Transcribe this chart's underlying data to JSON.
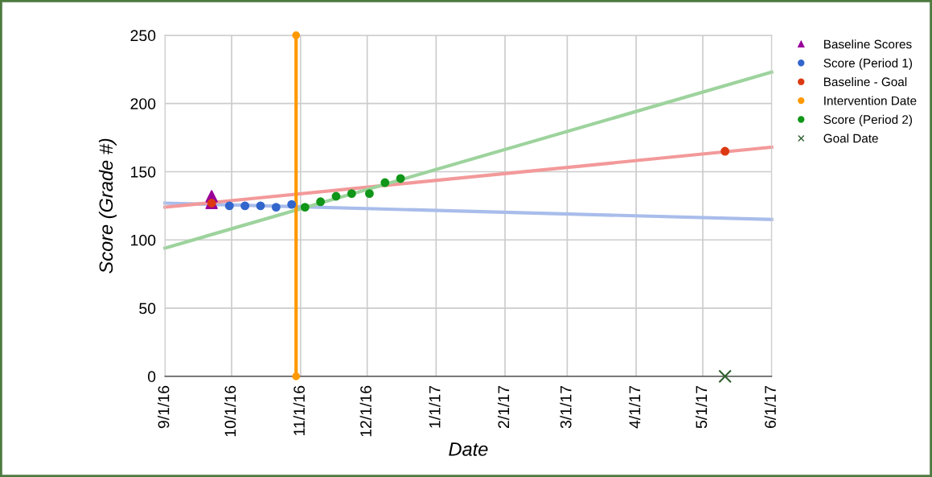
{
  "chart_data": {
    "type": "scatter",
    "xlabel": "Date",
    "ylabel": "Score (Grade #)",
    "xlim": [
      "2016-09-01",
      "2017-06-01"
    ],
    "xticks": [
      {
        "value": "2016-09-01",
        "label": "9/1/16"
      },
      {
        "value": "2016-10-01",
        "label": "10/1/16"
      },
      {
        "value": "2016-11-01",
        "label": "11/1/16"
      },
      {
        "value": "2016-12-01",
        "label": "12/1/16"
      },
      {
        "value": "2017-01-01",
        "label": "1/1/17"
      },
      {
        "value": "2017-02-01",
        "label": "2/1/17"
      },
      {
        "value": "2017-03-01",
        "label": "3/1/17"
      },
      {
        "value": "2017-04-01",
        "label": "4/1/17"
      },
      {
        "value": "2017-05-01",
        "label": "5/1/17"
      },
      {
        "value": "2017-06-01",
        "label": "6/1/17"
      }
    ],
    "ylim": [
      0,
      250
    ],
    "yticks": [
      0,
      50,
      100,
      150,
      200,
      250
    ],
    "grid": true,
    "legend": "right",
    "series": [
      {
        "type": "line",
        "color": "#a9bdeb",
        "marker": "none",
        "x": [
          "2016-09-01",
          "2017-06-01"
        ],
        "values": [
          127,
          115
        ]
      },
      {
        "type": "line",
        "color": "#f3999a",
        "marker": "none",
        "x": [
          "2016-09-01",
          "2017-06-01"
        ],
        "values": [
          124,
          168
        ]
      },
      {
        "type": "line",
        "color": "#9dd39d",
        "marker": "none",
        "x": [
          "2016-09-01",
          "2017-06-01"
        ],
        "values": [
          94,
          223
        ]
      },
      {
        "name": "Baseline Scores",
        "color": "#990099",
        "marker": "triangle",
        "x": [
          "2016-09-22",
          "2016-09-22"
        ],
        "values": [
          132,
          127
        ]
      },
      {
        "name": "Score (Period 1)",
        "color": "#3366cc",
        "marker": "circle",
        "x": [
          "2016-09-30",
          "2016-10-07",
          "2016-10-14",
          "2016-10-21",
          "2016-10-28"
        ],
        "values": [
          125,
          125,
          125,
          124,
          126
        ]
      },
      {
        "name": "Baseline - Goal",
        "color": "#dc3912",
        "marker": "circle",
        "x": [
          "2016-09-22",
          "2017-05-11"
        ],
        "values": [
          127,
          165
        ]
      },
      {
        "name": "Intervention Date",
        "type": "line",
        "color": "#ff9900",
        "marker": "circle",
        "x": [
          "2016-10-30",
          "2016-10-30"
        ],
        "values": [
          0,
          250
        ]
      },
      {
        "name": "Score (Period 2)",
        "color": "#109618",
        "marker": "circle",
        "x": [
          "2016-11-03",
          "2016-11-10",
          "2016-11-17",
          "2016-11-24",
          "2016-12-02",
          "2016-12-09",
          "2016-12-16"
        ],
        "values": [
          124,
          128,
          132,
          134,
          134,
          142,
          145
        ]
      },
      {
        "name": "Goal Date",
        "color": "#2e5e2e",
        "marker": "cross",
        "x": [
          "2017-05-11"
        ],
        "values": [
          0
        ]
      }
    ]
  }
}
